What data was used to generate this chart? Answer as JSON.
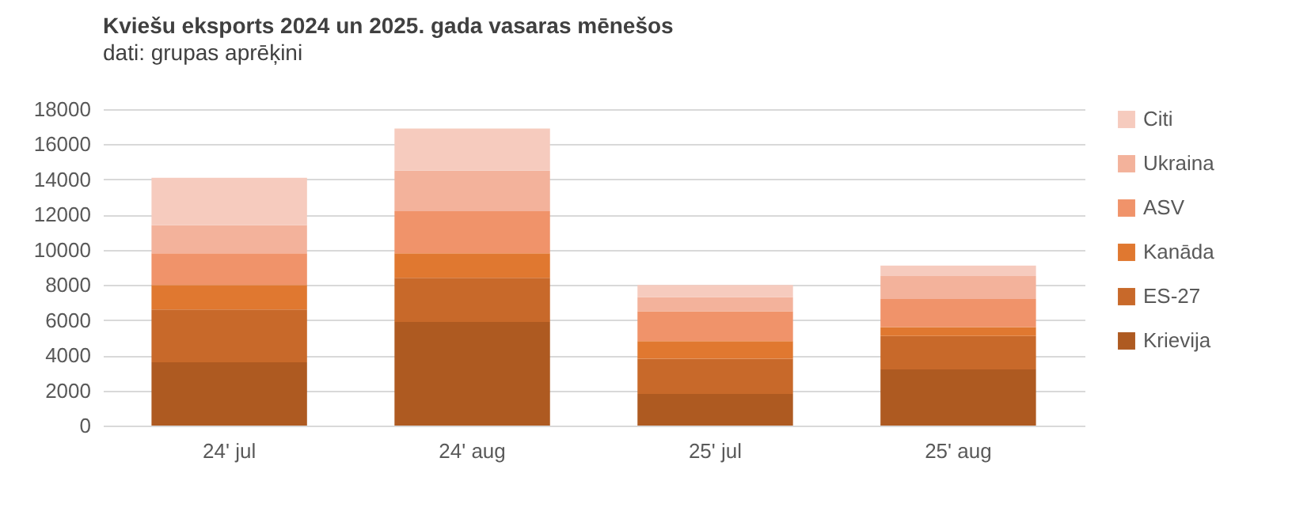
{
  "chart_data": {
    "type": "bar",
    "title": "Kviešu eksports 2024 un 2025. gada vasaras mēnešos",
    "subtitle": "dati: grupas aprēķini",
    "categories": [
      "24' jul",
      "24' aug",
      "25' jul",
      "25' aug"
    ],
    "stacked": true,
    "series": [
      {
        "name": "Krievija",
        "color": "#ae5a21",
        "values": [
          3600,
          5900,
          1800,
          3200
        ]
      },
      {
        "name": "ES-27",
        "color": "#c8692a",
        "values": [
          3000,
          2500,
          2000,
          1900
        ]
      },
      {
        "name": "Kanāda",
        "color": "#e07830",
        "values": [
          1400,
          1400,
          1000,
          500
        ]
      },
      {
        "name": "ASV",
        "color": "#f0936a",
        "values": [
          1800,
          2400,
          1700,
          1600
        ]
      },
      {
        "name": "Ukraina",
        "color": "#f3b29b",
        "values": [
          1600,
          2300,
          800,
          1300
        ]
      },
      {
        "name": "Citi",
        "color": "#f6cbbe",
        "values": [
          2700,
          2400,
          700,
          600
        ]
      }
    ],
    "ylim": [
      0,
      18000
    ],
    "yticks": [
      0,
      2000,
      4000,
      6000,
      8000,
      10000,
      12000,
      14000,
      16000,
      18000
    ],
    "grid": "y",
    "legend": "right"
  }
}
